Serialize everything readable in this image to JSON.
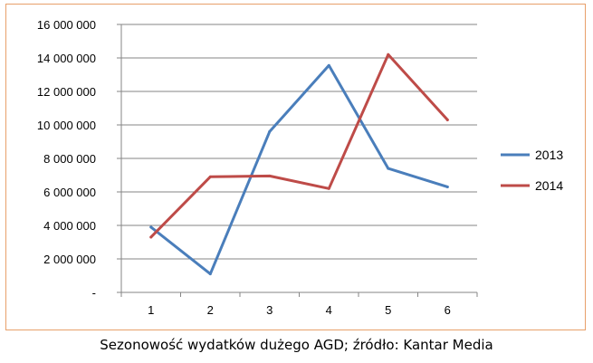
{
  "caption": "Sezonowość wydatków dużego AGD; źródło: Kantar Media",
  "chart_data": {
    "type": "line",
    "x": [
      1,
      2,
      3,
      4,
      5,
      6
    ],
    "x_tick_labels": [
      "1",
      "2",
      "3",
      "4",
      "5",
      "6"
    ],
    "series": [
      {
        "name": "2013",
        "color": "#4a7ebb",
        "values": [
          3900000,
          1100000,
          9600000,
          13550000,
          7400000,
          6300000
        ]
      },
      {
        "name": "2014",
        "color": "#be4b48",
        "values": [
          3300000,
          6900000,
          6950000,
          6200000,
          14200000,
          10300000
        ]
      }
    ],
    "ylim": [
      0,
      16000000
    ],
    "y_ticks": [
      0,
      2000000,
      4000000,
      6000000,
      8000000,
      10000000,
      12000000,
      14000000,
      16000000
    ],
    "y_tick_labels": [
      "-",
      "2 000 000",
      "4 000 000",
      "6 000 000",
      "8 000 000",
      "10 000 000",
      "12 000 000",
      "14 000 000",
      "16 000 000"
    ],
    "grid": true,
    "legend_position": "right",
    "gridline_color": "#868686",
    "axis_color": "#868686"
  }
}
